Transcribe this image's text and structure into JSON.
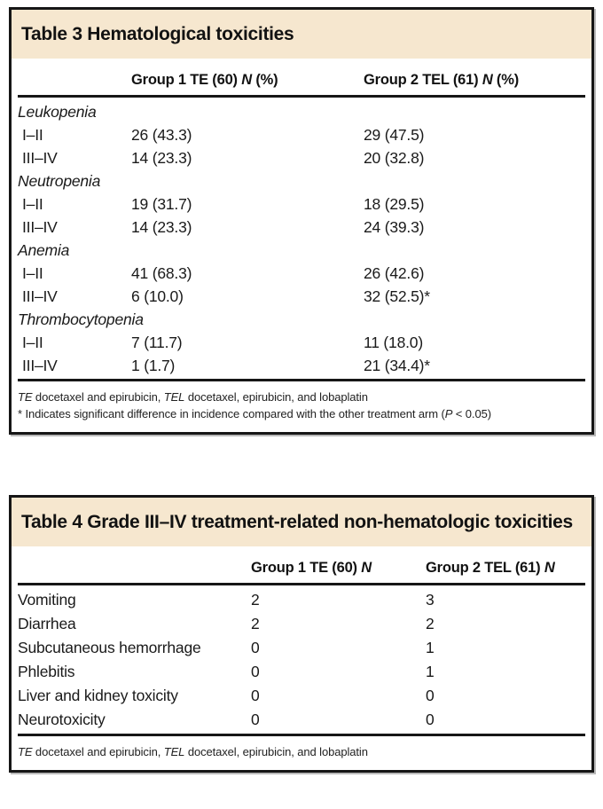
{
  "theme": {
    "band_color": "#f6e7cf",
    "border_color": "#161616",
    "text_color": "#1a1a1a"
  },
  "table3": {
    "title": "Table 3 Hematological toxicities",
    "header": {
      "col1": {
        "pre": "Group 1 TE (60) ",
        "n": "N",
        "post": " (%)"
      },
      "col2": {
        "pre": "Group 2 TEL (61) ",
        "n": "N",
        "post": " (%)"
      }
    },
    "rows": [
      {
        "type": "group",
        "label": "Leukopenia"
      },
      {
        "type": "data",
        "label": "I–II",
        "g1": "26 (43.3)",
        "g2": "29 (47.5)"
      },
      {
        "type": "data",
        "label": "III–IV",
        "g1": "14 (23.3)",
        "g2": "20 (32.8)"
      },
      {
        "type": "group",
        "label": "Neutropenia"
      },
      {
        "type": "data",
        "label": "I–II",
        "g1": "19 (31.7)",
        "g2": "18 (29.5)"
      },
      {
        "type": "data",
        "label": "III–IV",
        "g1": "14 (23.3)",
        "g2": "24 (39.3)"
      },
      {
        "type": "group",
        "label": "Anemia"
      },
      {
        "type": "data",
        "label": "I–II",
        "g1": "41 (68.3)",
        "g2": "26 (42.6)"
      },
      {
        "type": "data",
        "label": "III–IV",
        "g1": "6 (10.0)",
        "g2": "32 (52.5)*"
      },
      {
        "type": "group",
        "label": "Thrombocytopenia"
      },
      {
        "type": "data",
        "label": "I–II",
        "g1": "7 (11.7)",
        "g2": "11 (18.0)"
      },
      {
        "type": "data",
        "label": "III–IV",
        "g1": "1 (1.7)",
        "g2": "21 (34.4)*"
      }
    ],
    "footnote1": {
      "i1": "TE",
      "t1": " docetaxel and epirubicin, ",
      "i2": "TEL",
      "t2": " docetaxel, epirubicin, and lobaplatin"
    },
    "footnote2": {
      "t1": "* Indicates significant difference in incidence compared with the other treatment arm (",
      "i1": "P",
      "t2": " < 0.05)"
    }
  },
  "table4": {
    "title": "Table 4 Grade III–IV treatment-related non-hematologic toxicities",
    "header": {
      "col1": {
        "pre": "Group 1 TE (60) ",
        "n": "N"
      },
      "col2": {
        "pre": "Group 2 TEL (61) ",
        "n": "N"
      }
    },
    "rows": [
      {
        "label": "Vomiting",
        "g1": "2",
        "g2": "3"
      },
      {
        "label": "Diarrhea",
        "g1": "2",
        "g2": "2"
      },
      {
        "label": "Subcutaneous hemorrhage",
        "g1": "0",
        "g2": "1"
      },
      {
        "label": "Phlebitis",
        "g1": "0",
        "g2": "1"
      },
      {
        "label": "Liver and kidney toxicity",
        "g1": "0",
        "g2": "0"
      },
      {
        "label": "Neurotoxicity",
        "g1": "0",
        "g2": "0"
      }
    ],
    "footnote1": {
      "i1": "TE",
      "t1": " docetaxel and epirubicin, ",
      "i2": "TEL",
      "t2": " docetaxel, epirubicin, and lobaplatin"
    }
  }
}
